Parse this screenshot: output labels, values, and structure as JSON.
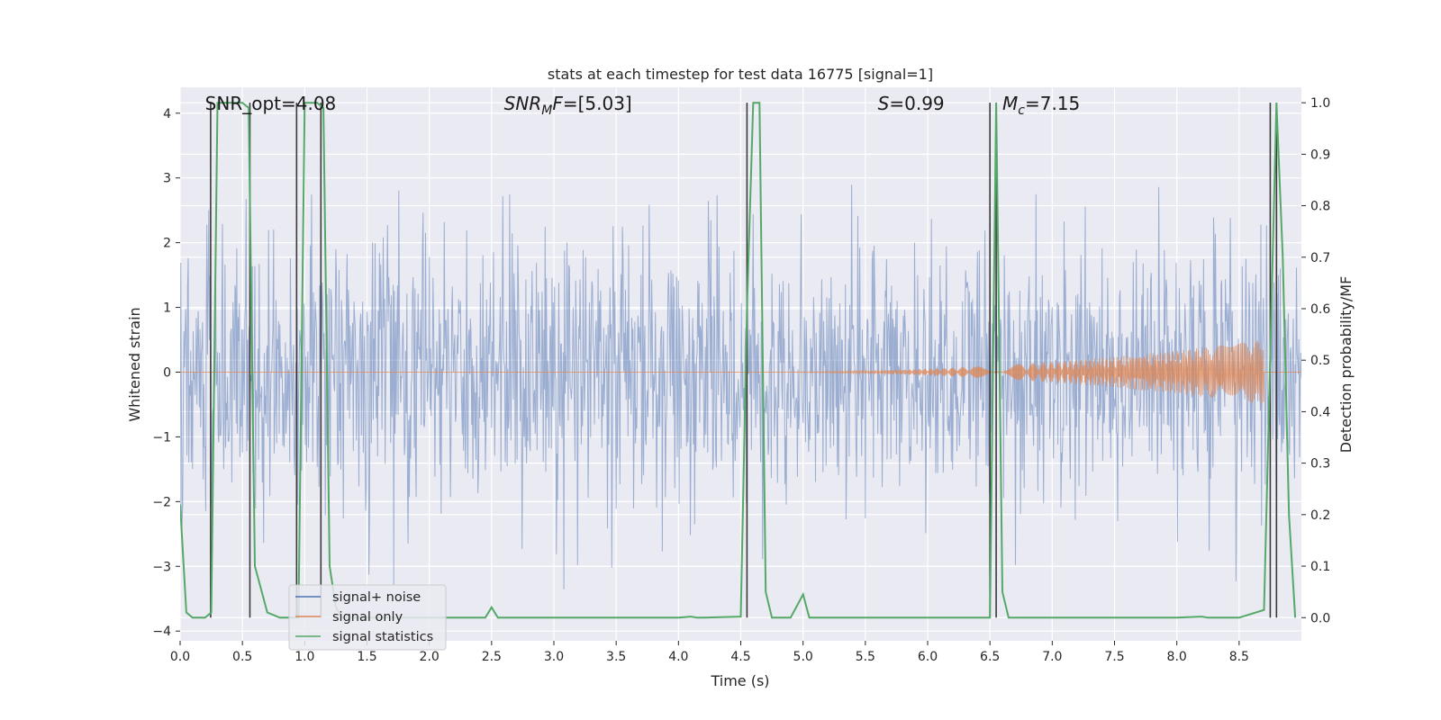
{
  "chart_data": {
    "type": "line",
    "title": "stats at each timestep for test data 16775 [signal=1]",
    "xlabel": "Time (s)",
    "ylabel": "Whitened strain",
    "y2label": "Detection probability/MF",
    "xlim": [
      0.0,
      9.0
    ],
    "ylim": [
      -4.15,
      4.4
    ],
    "y2lim": [
      -0.045,
      1.03
    ],
    "x_ticks": [
      0.0,
      0.5,
      1.0,
      1.5,
      2.0,
      2.5,
      3.0,
      3.5,
      4.0,
      4.5,
      5.0,
      5.5,
      6.0,
      6.5,
      7.0,
      7.5,
      8.0,
      8.5
    ],
    "x_tick_labels": [
      "0.0",
      "0.5",
      "1.0",
      "1.5",
      "2.0",
      "2.5",
      "3.0",
      "3.5",
      "4.0",
      "4.5",
      "5.0",
      "5.5",
      "6.0",
      "6.5",
      "7.0",
      "7.5",
      "8.0",
      "8.5"
    ],
    "y_ticks": [
      4,
      3,
      2,
      1,
      0,
      -1,
      -2,
      -3,
      -4
    ],
    "y_tick_labels": [
      "4",
      "3",
      "2",
      "1",
      "0",
      "−1",
      "−2",
      "−3",
      "−4"
    ],
    "y2_ticks": [
      1.0,
      0.9,
      0.8,
      0.7,
      0.6,
      0.5,
      0.4,
      0.3,
      0.2,
      0.1,
      0.0
    ],
    "y2_tick_labels": [
      "1.0",
      "0.9",
      "0.8",
      "0.7",
      "0.6",
      "0.5",
      "0.4",
      "0.3",
      "0.2",
      "0.1",
      "0.0"
    ],
    "grid": true,
    "legend_position": "lower-left",
    "annotations": [
      {
        "text": "SNR_opt=4.08",
        "x": 0.2,
        "y": 4.05,
        "italic": false
      },
      {
        "text": "SNR",
        "sub": "M",
        "suffix": "F=[5.03]",
        "x": 2.6,
        "y": 4.05,
        "italic": true
      },
      {
        "text": "S",
        "suffix": "=0.99",
        "x": 5.6,
        "y": 4.05,
        "italic": true
      },
      {
        "text": "M",
        "sub": "c",
        "suffix": "=7.15",
        "x": 6.6,
        "y": 4.05,
        "italic": true
      }
    ],
    "series": [
      {
        "name": "signal+ noise",
        "color": "#4c72b0",
        "noise_sigma": 1.0,
        "t_end": 9.0
      },
      {
        "name": "signal only",
        "color": "#dd8452",
        "chirp_start": 4.5,
        "chirp_end": 8.7,
        "max_amplitude": 0.5
      },
      {
        "name": "signal statistics",
        "color": "#55a868",
        "axis": "right",
        "x": [
          0.0,
          0.05,
          0.1,
          0.2,
          0.25,
          0.3,
          0.5,
          0.55,
          0.6,
          0.7,
          0.8,
          0.9,
          0.95,
          1.0,
          1.1,
          1.15,
          1.2,
          1.25,
          1.3,
          1.5,
          2.0,
          2.45,
          2.5,
          2.55,
          3.0,
          3.5,
          4.0,
          4.1,
          4.15,
          4.2,
          4.5,
          4.55,
          4.6,
          4.65,
          4.7,
          4.75,
          4.8,
          4.85,
          4.9,
          5.0,
          5.05,
          5.1,
          5.5,
          6.0,
          6.5,
          6.55,
          6.6,
          6.65,
          6.7,
          7.0,
          7.5,
          8.0,
          8.2,
          8.25,
          8.5,
          8.7,
          8.8,
          8.85,
          8.9,
          8.95
        ],
        "y": [
          0.22,
          0.01,
          0.0,
          0.0,
          0.01,
          1.0,
          1.0,
          0.99,
          0.1,
          0.01,
          0.0,
          0.0,
          0.0,
          1.0,
          1.0,
          0.99,
          0.1,
          0.02,
          0.0,
          0.0,
          0.0,
          0.0,
          0.02,
          0.0,
          0.0,
          0.0,
          0.0,
          0.002,
          0.0,
          0.0,
          0.002,
          0.6,
          1.0,
          1.0,
          0.05,
          0.0,
          0.0,
          0.0,
          0.0,
          0.045,
          0.0,
          0.0,
          0.0,
          0.0,
          0.0,
          1.0,
          0.05,
          0.0,
          0.0,
          0.0,
          0.0,
          0.0,
          0.002,
          0.0,
          0.0,
          0.015,
          1.0,
          0.7,
          0.2,
          0.0
        ]
      }
    ],
    "vertical_markers": [
      {
        "x": 0.245,
        "y_from": 0.0,
        "y_to": 1.0
      },
      {
        "x": 0.56,
        "y_from": 0.0,
        "y_to": 1.0
      },
      {
        "x": 0.935,
        "y_from": 0.0,
        "y_to": 1.0
      },
      {
        "x": 1.13,
        "y_from": 0.0,
        "y_to": 1.0
      },
      {
        "x": 4.55,
        "y_from": 0.0,
        "y_to": 1.0
      },
      {
        "x": 6.5,
        "y_from": 0.0,
        "y_to": 1.0
      },
      {
        "x": 6.55,
        "y_from": 0.0,
        "y_to": 1.0
      },
      {
        "x": 8.75,
        "y_from": 0.0,
        "y_to": 1.0
      },
      {
        "x": 8.8,
        "y_from": 0.0,
        "y_to": 1.0
      }
    ],
    "legend": [
      {
        "label": "signal+ noise",
        "color": "#4c72b0"
      },
      {
        "label": "signal only",
        "color": "#dd8452"
      },
      {
        "label": "signal statistics",
        "color": "#55a868"
      }
    ]
  },
  "colors": {
    "plot_background": "#eaeaf2",
    "grid": "#ffffff",
    "marker_line": "#3a3a3a"
  }
}
